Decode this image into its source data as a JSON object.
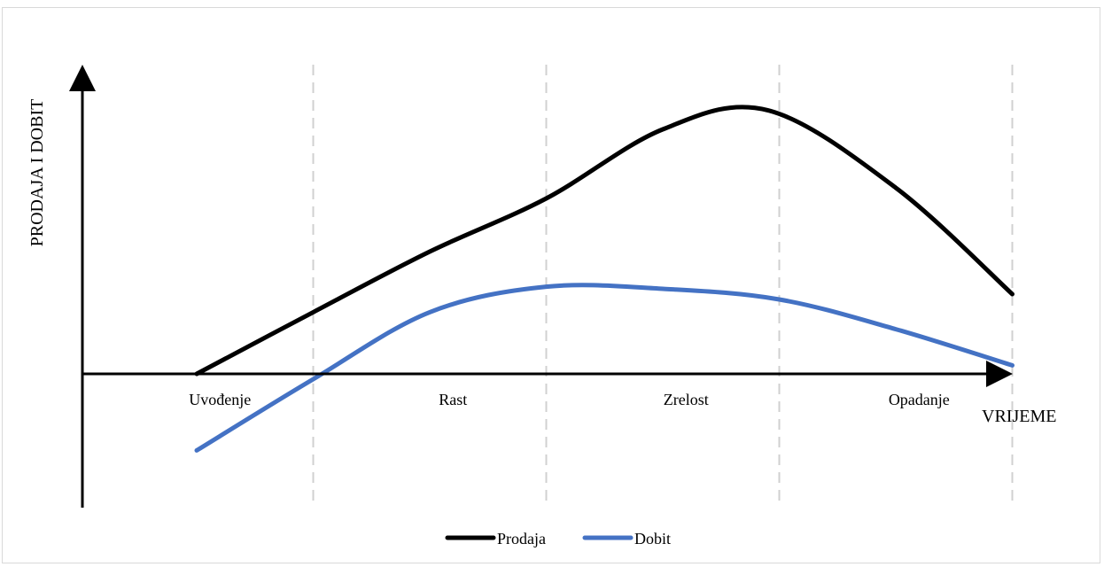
{
  "chart_data": {
    "type": "line",
    "title": "",
    "xlabel": "VRIJEME",
    "ylabel": "PRODAJA I DOBIT",
    "categories": [
      "Uvođenje",
      "Rast",
      "Zrelost",
      "Opadanje"
    ],
    "xlim": [
      0,
      4
    ],
    "ylim": [
      -1.2,
      2.5
    ],
    "grid": false,
    "legend": "bottom",
    "series": [
      {
        "name": "Prodaja",
        "color": "#000000",
        "x": [
          0.0,
          0.5,
          1.0,
          1.5,
          2.0,
          2.45,
          3.0,
          3.5
        ],
        "y": [
          0.0,
          0.58,
          1.15,
          1.65,
          2.3,
          2.48,
          1.75,
          0.75
        ]
      },
      {
        "name": "Dobit",
        "color": "#4472c4",
        "x": [
          0.0,
          0.5,
          1.0,
          1.5,
          2.0,
          2.5,
          3.0,
          3.5
        ],
        "y": [
          -0.72,
          -0.05,
          0.58,
          0.82,
          0.8,
          0.7,
          0.42,
          0.08
        ]
      }
    ]
  }
}
